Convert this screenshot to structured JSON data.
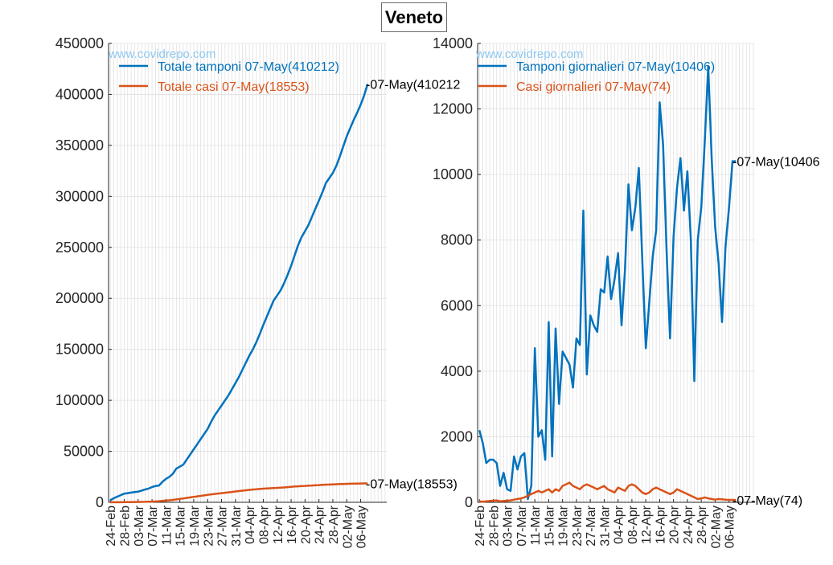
{
  "title": "Veneto",
  "colors": {
    "blue": "#0072BD",
    "orange": "#D95319",
    "grid": "#e0e0e0",
    "axis": "#262626",
    "watermark": "#8fc8f0"
  },
  "chart_data": [
    {
      "type": "line",
      "watermark": "www.covidrepo.com",
      "ylim": [
        0,
        450000
      ],
      "yticks": [
        "0",
        "50000",
        "100000",
        "150000",
        "200000",
        "250000",
        "300000",
        "350000",
        "400000",
        "450000"
      ],
      "x_start": "24-Feb",
      "x_end": "07-May",
      "xticks": [
        "24-Feb",
        "28-Feb",
        "03-Mar",
        "07-Mar",
        "11-Mar",
        "15-Mar",
        "19-Mar",
        "23-Mar",
        "27-Mar",
        "31-Mar",
        "04-Apr",
        "08-Apr",
        "12-Apr",
        "16-Apr",
        "20-Apr",
        "24-Apr",
        "28-Apr",
        "02-May",
        "06-May"
      ],
      "legend_position": "top-left",
      "grid": true,
      "series": [
        {
          "name": "Totale tamponi 07-May(410212)",
          "color": "#0072BD",
          "end_label": "-07-May(410212",
          "values": [
            2000,
            4000,
            5500,
            7000,
            8500,
            9000,
            9500,
            10000,
            10500,
            11500,
            12500,
            13500,
            15000,
            16000,
            16500,
            20000,
            23000,
            25000,
            28000,
            33000,
            35000,
            37000,
            42000,
            47000,
            52000,
            57000,
            62000,
            67000,
            72000,
            79000,
            85000,
            90000,
            95000,
            100000,
            105000,
            111000,
            117000,
            123000,
            130000,
            137000,
            144000,
            150000,
            157000,
            165000,
            174000,
            182000,
            190000,
            198000,
            203000,
            208000,
            215000,
            223000,
            232000,
            242000,
            252000,
            260000,
            266000,
            272000,
            280000,
            288000,
            296000,
            304000,
            313000,
            318000,
            323000,
            330000,
            339000,
            349000,
            359000,
            367000,
            375000,
            382000,
            390000,
            399000,
            410212
          ]
        },
        {
          "name": "Totale casi 07-May(18553)",
          "color": "#D95319",
          "end_label": "-07-May(18553)",
          "values": [
            30,
            40,
            60,
            100,
            150,
            200,
            250,
            300,
            350,
            400,
            500,
            600,
            700,
            900,
            1100,
            1400,
            1700,
            2000,
            2400,
            2800,
            3300,
            3800,
            4300,
            4800,
            5300,
            5800,
            6300,
            6800,
            7300,
            7800,
            8200,
            8600,
            9000,
            9400,
            9800,
            10200,
            10600,
            11000,
            11400,
            11800,
            12200,
            12500,
            12800,
            13100,
            13400,
            13600,
            13800,
            14000,
            14200,
            14400,
            14600,
            14900,
            15200,
            15500,
            15700,
            15900,
            16100,
            16300,
            16500,
            16700,
            16900,
            17100,
            17300,
            17450,
            17600,
            17750,
            17900,
            18000,
            18100,
            18200,
            18280,
            18360,
            18430,
            18500,
            18553
          ]
        }
      ]
    },
    {
      "type": "line",
      "watermark": "www.covidrepo.com",
      "ylim": [
        0,
        14000
      ],
      "yticks": [
        "0",
        "2000",
        "4000",
        "6000",
        "8000",
        "10000",
        "12000",
        "14000"
      ],
      "x_start": "24-Feb",
      "x_end": "07-May",
      "xticks": [
        "24-Feb",
        "28-Feb",
        "03-Mar",
        "07-Mar",
        "11-Mar",
        "15-Mar",
        "19-Mar",
        "23-Mar",
        "27-Mar",
        "31-Mar",
        "04-Apr",
        "08-Apr",
        "12-Apr",
        "16-Apr",
        "20-Apr",
        "24-Apr",
        "28-Apr",
        "02-May",
        "06-May"
      ],
      "legend_position": "top-left",
      "grid": true,
      "series": [
        {
          "name": "Tamponi giornalieri 07-May(10406)",
          "color": "#0072BD",
          "end_label": "-07-May(10406",
          "values": [
            2200,
            1800,
            1200,
            1300,
            1300,
            1200,
            500,
            900,
            400,
            350,
            1400,
            1000,
            1400,
            1500,
            100,
            500,
            4700,
            2000,
            2200,
            1300,
            5500,
            1400,
            5300,
            3000,
            4600,
            4400,
            4200,
            3500,
            5000,
            4800,
            8900,
            3900,
            5700,
            5400,
            5200,
            6500,
            6400,
            7500,
            6200,
            6800,
            7600,
            5400,
            7100,
            9700,
            8300,
            9000,
            10200,
            7400,
            4700,
            6100,
            7500,
            8300,
            12200,
            10900,
            7700,
            5000,
            8100,
            9600,
            10500,
            8900,
            10100,
            8000,
            3700,
            8000,
            9000,
            11000,
            13300,
            10500,
            8400,
            7300,
            5500,
            7800,
            9000,
            10406,
            10406
          ]
        },
        {
          "name": "Casi giornalieri 07-May(74)",
          "color": "#D95319",
          "end_label": "-07-May(74)",
          "values": [
            30,
            20,
            30,
            40,
            50,
            60,
            30,
            40,
            50,
            60,
            80,
            100,
            120,
            150,
            200,
            250,
            300,
            350,
            300,
            350,
            400,
            300,
            400,
            350,
            500,
            550,
            600,
            500,
            450,
            400,
            500,
            550,
            500,
            450,
            400,
            450,
            500,
            400,
            350,
            300,
            450,
            400,
            350,
            500,
            550,
            500,
            400,
            300,
            250,
            300,
            400,
            450,
            400,
            350,
            300,
            250,
            300,
            400,
            350,
            300,
            250,
            200,
            150,
            100,
            120,
            150,
            120,
            100,
            80,
            100,
            90,
            80,
            74,
            74,
            74
          ]
        }
      ]
    }
  ]
}
